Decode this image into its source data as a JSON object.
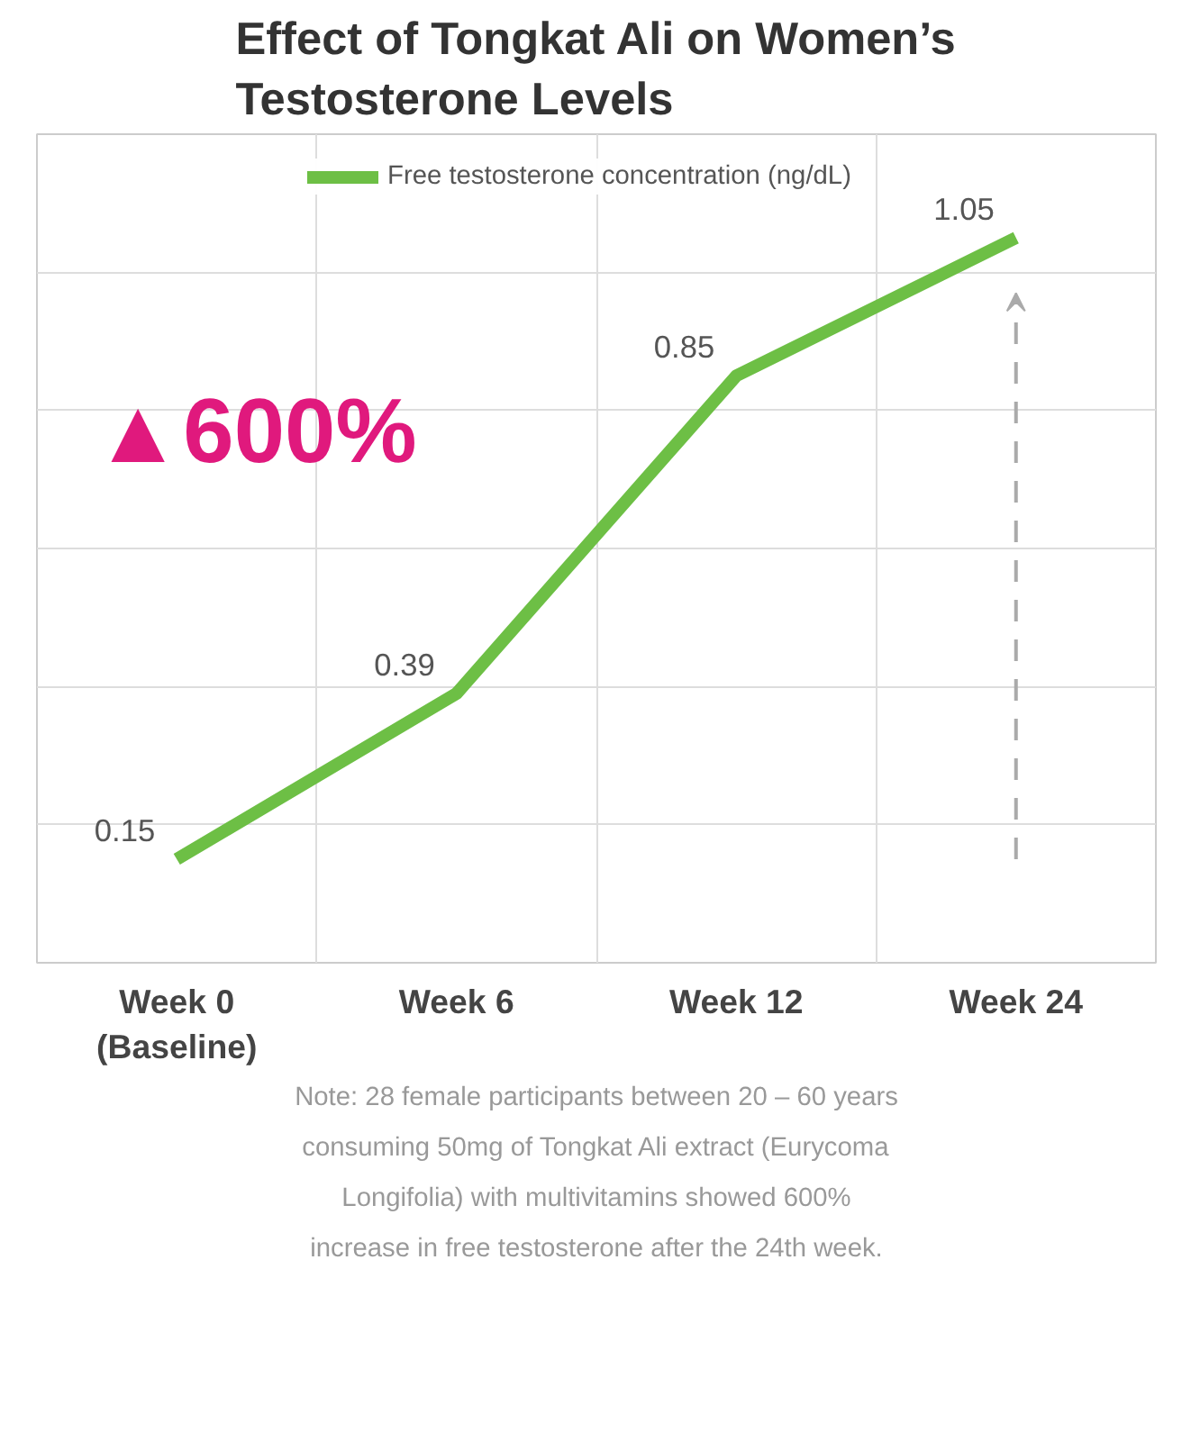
{
  "chart_data": {
    "type": "line",
    "title": "Effect of Tongkat Ali on Women’s\nTestosterone Levels",
    "categories": [
      "Week 0\n(Baseline)",
      "Week 6",
      "Week 12",
      "Week 24"
    ],
    "series": [
      {
        "name": "Free testosterone concentration (ng/dL)",
        "color": "#6dbf45",
        "values": [
          0.15,
          0.39,
          0.85,
          1.05
        ]
      }
    ],
    "ylim": [
      0,
      1.2
    ],
    "tick_labels": "x",
    "grid": true,
    "legend": "top",
    "marker": "none",
    "line_style": "solid",
    "data_labels": true,
    "annotations": [
      "▲600%",
      "Note: 28 female participants between 20 – 60 years\nconsuming 50mg of Tongkat Ali extract (Eurycoma\nLongifolia) with multivitamins showed 600%\nincrease in free testosterone after the 24th week."
    ]
  }
}
